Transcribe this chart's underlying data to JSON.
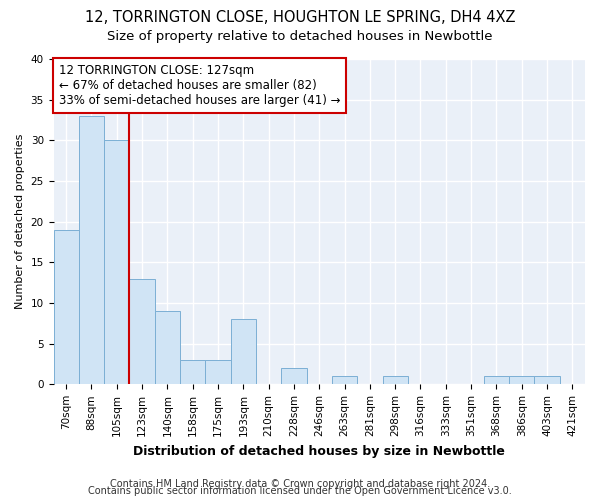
{
  "title": "12, TORRINGTON CLOSE, HOUGHTON LE SPRING, DH4 4XZ",
  "subtitle": "Size of property relative to detached houses in Newbottle",
  "xlabel": "Distribution of detached houses by size in Newbottle",
  "ylabel": "Number of detached properties",
  "categories": [
    "70sqm",
    "88sqm",
    "105sqm",
    "123sqm",
    "140sqm",
    "158sqm",
    "175sqm",
    "193sqm",
    "210sqm",
    "228sqm",
    "246sqm",
    "263sqm",
    "281sqm",
    "298sqm",
    "316sqm",
    "333sqm",
    "351sqm",
    "368sqm",
    "386sqm",
    "403sqm",
    "421sqm"
  ],
  "values": [
    19,
    33,
    30,
    13,
    9,
    3,
    3,
    8,
    0,
    2,
    0,
    1,
    0,
    1,
    0,
    0,
    0,
    1,
    1,
    1,
    0
  ],
  "bar_color": "#d0e4f5",
  "bar_edge_color": "#7bafd4",
  "vline_x": 3.0,
  "vline_color": "#cc0000",
  "annotation_text_line1": "12 TORRINGTON CLOSE: 127sqm",
  "annotation_text_line2": "← 67% of detached houses are smaller (82)",
  "annotation_text_line3": "33% of semi-detached houses are larger (41) →",
  "annotation_box_color": "#ffffff",
  "annotation_box_edge_color": "#cc0000",
  "ylim": [
    0,
    40
  ],
  "yticks": [
    0,
    5,
    10,
    15,
    20,
    25,
    30,
    35,
    40
  ],
  "footnote1": "Contains HM Land Registry data © Crown copyright and database right 2024.",
  "footnote2": "Contains public sector information licensed under the Open Government Licence v3.0.",
  "fig_bg_color": "#ffffff",
  "plot_bg_color": "#eaf0f8",
  "grid_color": "#ffffff",
  "title_fontsize": 10.5,
  "subtitle_fontsize": 9.5,
  "xlabel_fontsize": 9,
  "ylabel_fontsize": 8,
  "tick_fontsize": 7.5,
  "annotation_fontsize": 8.5,
  "footnote_fontsize": 7
}
